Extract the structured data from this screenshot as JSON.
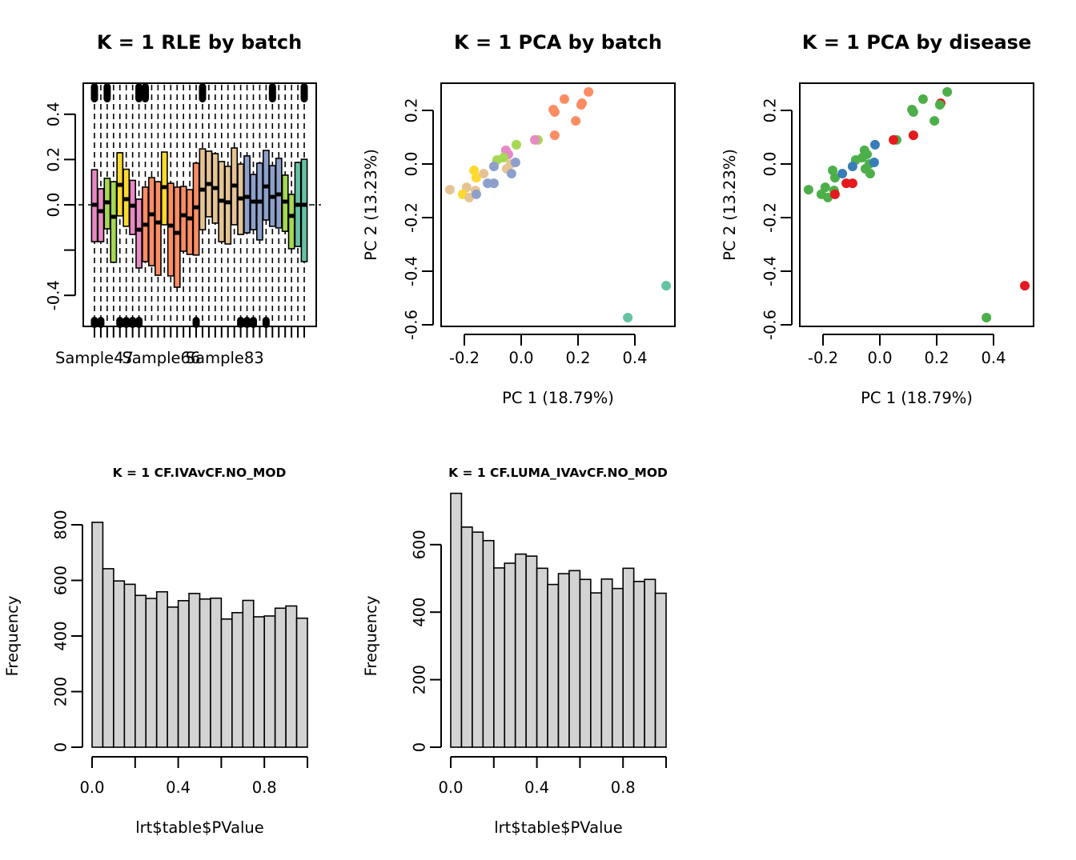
{
  "colors": {
    "batch_palette": [
      "#E78AC3",
      "#A6D854",
      "#FFD92F",
      "#FC8D62",
      "#E5C494",
      "#8DA0CB",
      "#66C2A5"
    ],
    "disease_palette": [
      "#E41A1C",
      "#377EB8",
      "#4DAF4A"
    ],
    "hist_fill": "#D3D3D3",
    "axis": "#000000"
  },
  "chart_data": [
    {
      "id": "rle",
      "type": "boxplot",
      "title": "K = 1 RLE by batch",
      "xlabel": "",
      "ylabel": "",
      "ylim": [
        -0.54,
        0.54
      ],
      "yticks": [
        -0.4,
        -0.2,
        0.0,
        0.2,
        0.4
      ],
      "ytick_labels": [
        "-0.4",
        "",
        "0.0",
        "0.2",
        "0.4"
      ],
      "xtick_labels": [
        "Sample47",
        "Sample66",
        "Sample83"
      ],
      "xtick_label_positions": [
        1,
        11.5,
        21.5
      ],
      "reference_line": 0.0,
      "boxes": [
        {
          "batch": "pink",
          "q3": 0.155,
          "median": 0.0,
          "q1": -0.163
        },
        {
          "batch": "pink",
          "q3": 0.071,
          "median": -0.028,
          "q1": -0.163
        },
        {
          "batch": "green",
          "q3": 0.117,
          "median": 0.011,
          "q1": -0.106
        },
        {
          "batch": "green",
          "q3": 0.102,
          "median": -0.053,
          "q1": -0.254
        },
        {
          "batch": "yellow",
          "q3": 0.23,
          "median": 0.088,
          "q1": -0.049
        },
        {
          "batch": "yellow",
          "q3": 0.157,
          "median": 0.025,
          "q1": -0.095
        },
        {
          "batch": "pink",
          "q3": 0.108,
          "median": -0.004,
          "q1": -0.131
        },
        {
          "batch": "pink",
          "q3": 0.025,
          "median": -0.11,
          "q1": -0.279
        },
        {
          "batch": "orange",
          "q3": 0.078,
          "median": -0.088,
          "q1": -0.251
        },
        {
          "batch": "orange",
          "q3": 0.12,
          "median": -0.042,
          "q1": -0.269
        },
        {
          "batch": "orange",
          "q3": 0.102,
          "median": -0.078,
          "q1": -0.311
        },
        {
          "batch": "yellow",
          "q3": 0.233,
          "median": 0.078,
          "q1": -0.088
        },
        {
          "batch": "orange",
          "q3": 0.095,
          "median": -0.092,
          "q1": -0.314
        },
        {
          "batch": "orange",
          "q3": 0.078,
          "median": -0.124,
          "q1": -0.364
        },
        {
          "batch": "orange",
          "q3": 0.081,
          "median": -0.046,
          "q1": -0.205
        },
        {
          "batch": "orange",
          "q3": 0.067,
          "median": -0.06,
          "q1": -0.219
        },
        {
          "batch": "orange",
          "q3": 0.184,
          "median": -0.011,
          "q1": -0.222
        },
        {
          "batch": "tan",
          "q3": 0.247,
          "median": 0.067,
          "q1": -0.11
        },
        {
          "batch": "tan",
          "q3": 0.237,
          "median": 0.092,
          "q1": -0.053
        },
        {
          "batch": "tan",
          "q3": 0.226,
          "median": 0.074,
          "q1": -0.081
        },
        {
          "batch": "tan",
          "q3": 0.191,
          "median": 0.018,
          "q1": -0.163
        },
        {
          "batch": "tan",
          "q3": 0.17,
          "median": 0.011,
          "q1": -0.173
        },
        {
          "batch": "tan",
          "q3": 0.251,
          "median": 0.085,
          "q1": -0.088
        },
        {
          "batch": "tan",
          "q3": 0.18,
          "median": 0.028,
          "q1": -0.131
        },
        {
          "batch": "blue",
          "q3": 0.216,
          "median": 0.035,
          "q1": -0.124
        },
        {
          "batch": "blue",
          "q3": 0.134,
          "median": 0.014,
          "q1": -0.11
        },
        {
          "batch": "blue",
          "q3": 0.184,
          "median": 0.014,
          "q1": -0.155
        },
        {
          "batch": "blue",
          "q3": 0.24,
          "median": 0.081,
          "q1": -0.067
        },
        {
          "batch": "blue",
          "q3": 0.173,
          "median": 0.035,
          "q1": -0.095
        },
        {
          "batch": "blue",
          "q3": 0.205,
          "median": 0.046,
          "q1": -0.102
        },
        {
          "batch": "green",
          "q3": 0.131,
          "median": 0.014,
          "q1": -0.117
        },
        {
          "batch": "green",
          "q3": 0.046,
          "median": -0.049,
          "q1": -0.194
        },
        {
          "batch": "teal",
          "q3": 0.187,
          "median": 0.0,
          "q1": -0.184
        },
        {
          "batch": "teal",
          "q3": 0.201,
          "median": 0.0,
          "q1": -0.251
        }
      ],
      "outlier_top_samples": [
        1,
        3,
        8,
        9,
        18,
        29,
        34
      ],
      "outlier_bottom_samples": [
        1,
        2,
        5,
        6,
        7,
        8,
        17,
        24,
        25,
        26,
        28
      ],
      "batch_colors": {
        "pink": "#E78AC3",
        "green": "#A6D854",
        "yellow": "#FFD92F",
        "orange": "#FC8D62",
        "tan": "#E5C494",
        "blue": "#8DA0CB",
        "teal": "#66C2A5"
      }
    },
    {
      "id": "pca_batch",
      "type": "scatter",
      "title": "K = 1 PCA by batch",
      "xlabel": "PC 1 (18.79%)",
      "ylabel": "PC 2 (13.23%)",
      "xlim": [
        -0.28,
        0.54
      ],
      "ylim": [
        -0.61,
        0.31
      ],
      "xticks": [
        -0.2,
        0.0,
        0.2,
        0.4
      ],
      "xtick_labels": [
        "-0.2",
        "0.0",
        "0.2",
        "0.4"
      ],
      "yticks": [
        -0.6,
        -0.4,
        -0.2,
        0.0,
        0.2
      ],
      "ytick_labels": [
        "-0.6",
        "-0.4",
        "-0.2",
        "0.0",
        "0.2"
      ],
      "points": [
        {
          "x": 0.237,
          "y": 0.269,
          "group": "orange"
        },
        {
          "x": 0.152,
          "y": 0.242,
          "group": "orange"
        },
        {
          "x": 0.214,
          "y": 0.227,
          "group": "orange"
        },
        {
          "x": 0.211,
          "y": 0.221,
          "group": "orange"
        },
        {
          "x": 0.113,
          "y": 0.203,
          "group": "orange"
        },
        {
          "x": 0.118,
          "y": 0.194,
          "group": "orange"
        },
        {
          "x": 0.192,
          "y": 0.161,
          "group": "orange"
        },
        {
          "x": 0.118,
          "y": 0.107,
          "group": "orange"
        },
        {
          "x": 0.059,
          "y": 0.09,
          "group": "green"
        },
        {
          "x": 0.048,
          "y": 0.09,
          "group": "pink"
        },
        {
          "x": -0.017,
          "y": 0.072,
          "group": "green"
        },
        {
          "x": -0.054,
          "y": 0.051,
          "group": "pink"
        },
        {
          "x": -0.045,
          "y": 0.036,
          "group": "pink"
        },
        {
          "x": -0.062,
          "y": 0.024,
          "group": "green"
        },
        {
          "x": -0.085,
          "y": 0.015,
          "group": "green"
        },
        {
          "x": -0.037,
          "y": 0.0,
          "group": "tan"
        },
        {
          "x": -0.02,
          "y": 0.006,
          "group": "blue"
        },
        {
          "x": -0.051,
          "y": -0.018,
          "group": "tan"
        },
        {
          "x": -0.096,
          "y": -0.009,
          "group": "blue"
        },
        {
          "x": -0.034,
          "y": -0.036,
          "group": "blue"
        },
        {
          "x": -0.166,
          "y": -0.024,
          "group": "yellow"
        },
        {
          "x": -0.158,
          "y": -0.051,
          "group": "yellow"
        },
        {
          "x": -0.132,
          "y": -0.036,
          "group": "tan"
        },
        {
          "x": -0.118,
          "y": -0.072,
          "group": "blue"
        },
        {
          "x": -0.096,
          "y": -0.072,
          "group": "blue"
        },
        {
          "x": -0.251,
          "y": -0.096,
          "group": "tan"
        },
        {
          "x": -0.192,
          "y": -0.087,
          "group": "tan"
        },
        {
          "x": -0.206,
          "y": -0.113,
          "group": "yellow"
        },
        {
          "x": -0.161,
          "y": -0.099,
          "group": "tan"
        },
        {
          "x": -0.183,
          "y": -0.125,
          "group": "tan"
        },
        {
          "x": -0.158,
          "y": -0.113,
          "group": "blue"
        },
        {
          "x": 0.51,
          "y": -0.454,
          "group": "teal"
        },
        {
          "x": 0.375,
          "y": -0.573,
          "group": "teal"
        }
      ],
      "group_colors": {
        "pink": "#E78AC3",
        "green": "#A6D854",
        "yellow": "#FFD92F",
        "orange": "#FC8D62",
        "tan": "#E5C494",
        "blue": "#8DA0CB",
        "teal": "#66C2A5"
      }
    },
    {
      "id": "pca_disease",
      "type": "scatter",
      "title": "K = 1 PCA by disease",
      "xlabel": "PC 1 (18.79%)",
      "ylabel": "PC 2 (13.23%)",
      "xlim": [
        -0.28,
        0.54
      ],
      "ylim": [
        -0.61,
        0.31
      ],
      "xticks": [
        -0.2,
        0.0,
        0.2,
        0.4
      ],
      "xtick_labels": [
        "-0.2",
        "0.0",
        "0.2",
        "0.4"
      ],
      "yticks": [
        -0.6,
        -0.4,
        -0.2,
        0.0,
        0.2
      ],
      "ytick_labels": [
        "-0.6",
        "-0.4",
        "-0.2",
        "0.0",
        "0.2"
      ],
      "points": [
        {
          "x": 0.214,
          "y": 0.227,
          "group": "red"
        },
        {
          "x": 0.237,
          "y": 0.269,
          "group": "green"
        },
        {
          "x": 0.152,
          "y": 0.242,
          "group": "green"
        },
        {
          "x": 0.211,
          "y": 0.221,
          "group": "green"
        },
        {
          "x": 0.113,
          "y": 0.203,
          "group": "green"
        },
        {
          "x": 0.118,
          "y": 0.194,
          "group": "green"
        },
        {
          "x": 0.192,
          "y": 0.161,
          "group": "green"
        },
        {
          "x": 0.118,
          "y": 0.107,
          "group": "red"
        },
        {
          "x": 0.059,
          "y": 0.09,
          "group": "green"
        },
        {
          "x": 0.048,
          "y": 0.09,
          "group": "red"
        },
        {
          "x": -0.017,
          "y": 0.072,
          "group": "blue"
        },
        {
          "x": -0.054,
          "y": 0.051,
          "group": "green"
        },
        {
          "x": -0.045,
          "y": 0.036,
          "group": "green"
        },
        {
          "x": -0.062,
          "y": 0.024,
          "group": "green"
        },
        {
          "x": -0.085,
          "y": 0.015,
          "group": "green"
        },
        {
          "x": -0.037,
          "y": 0.0,
          "group": "green"
        },
        {
          "x": -0.02,
          "y": 0.006,
          "group": "blue"
        },
        {
          "x": -0.051,
          "y": -0.018,
          "group": "green"
        },
        {
          "x": -0.096,
          "y": -0.009,
          "group": "blue"
        },
        {
          "x": -0.034,
          "y": -0.036,
          "group": "green"
        },
        {
          "x": -0.166,
          "y": -0.024,
          "group": "green"
        },
        {
          "x": -0.158,
          "y": -0.051,
          "group": "green"
        },
        {
          "x": -0.132,
          "y": -0.036,
          "group": "blue"
        },
        {
          "x": -0.118,
          "y": -0.072,
          "group": "red"
        },
        {
          "x": -0.096,
          "y": -0.072,
          "group": "red"
        },
        {
          "x": -0.251,
          "y": -0.096,
          "group": "green"
        },
        {
          "x": -0.192,
          "y": -0.087,
          "group": "green"
        },
        {
          "x": -0.206,
          "y": -0.113,
          "group": "green"
        },
        {
          "x": -0.161,
          "y": -0.099,
          "group": "green"
        },
        {
          "x": -0.183,
          "y": -0.125,
          "group": "green"
        },
        {
          "x": -0.158,
          "y": -0.113,
          "group": "red"
        },
        {
          "x": 0.51,
          "y": -0.454,
          "group": "red"
        },
        {
          "x": 0.375,
          "y": -0.573,
          "group": "green"
        }
      ],
      "group_colors": {
        "red": "#E41A1C",
        "blue": "#377EB8",
        "green": "#4DAF4A"
      }
    },
    {
      "id": "hist_ivav",
      "type": "bar",
      "subtype": "histogram",
      "title": "K = 1 CF.IVAvCF.NO_MOD",
      "xlabel": "lrt$table$PValue",
      "ylabel": "Frequency",
      "xlim": [
        0,
        1
      ],
      "ylim": [
        0,
        810
      ],
      "bin_width": 0.05,
      "xticks": [
        0,
        0.2,
        0.4,
        0.6,
        0.8,
        1.0
      ],
      "xtick_labels": [
        "0.0",
        "",
        "0.4",
        "",
        "0.8",
        ""
      ],
      "yticks": [
        0,
        200,
        400,
        600,
        800
      ],
      "ytick_labels": [
        "0",
        "200",
        "400",
        "600",
        "800"
      ],
      "values": [
        809,
        642,
        598,
        586,
        546,
        535,
        559,
        504,
        527,
        553,
        533,
        536,
        461,
        484,
        528,
        469,
        472,
        500,
        508,
        464
      ]
    },
    {
      "id": "hist_luma",
      "type": "bar",
      "subtype": "histogram",
      "title": "K = 1 CF.LUMA_IVAvCF.NO_MOD",
      "xlabel": "lrt$table$PValue",
      "ylabel": "Frequency",
      "xlim": [
        0,
        1
      ],
      "ylim": [
        0,
        752
      ],
      "bin_width": 0.05,
      "xticks": [
        0,
        0.2,
        0.4,
        0.6,
        0.8,
        1.0
      ],
      "xtick_labels": [
        "0.0",
        "",
        "0.4",
        "",
        "0.8",
        ""
      ],
      "yticks": [
        0,
        200,
        400,
        600
      ],
      "ytick_labels": [
        "0",
        "200",
        "400",
        "600"
      ],
      "values": [
        752,
        652,
        637,
        612,
        531,
        545,
        572,
        566,
        530,
        482,
        514,
        523,
        497,
        457,
        498,
        470,
        530,
        491,
        497,
        456
      ]
    }
  ]
}
